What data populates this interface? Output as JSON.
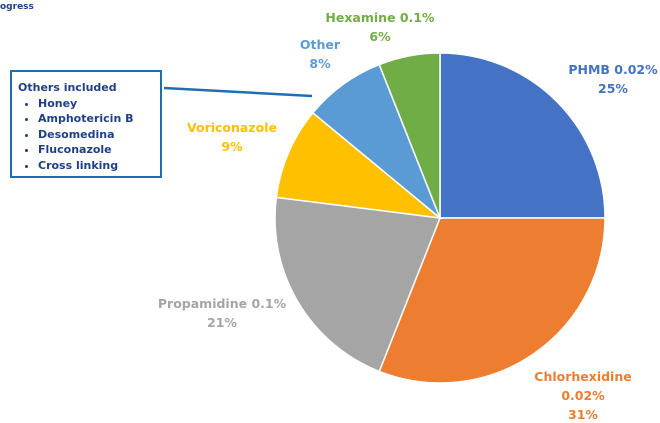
{
  "chart_data": {
    "type": "pie",
    "header": "ogress",
    "categories": [
      "PHMB 0.02%",
      "Chlorhexidine 0.02%",
      "Propamidine 0.1%",
      "Voriconazole",
      "Other",
      "Hexamine 0.1%"
    ],
    "values": [
      25,
      31,
      21,
      9,
      8,
      6
    ],
    "value_labels": [
      "25%",
      "31%",
      "21%",
      "9%",
      "8%",
      "6%"
    ],
    "colors": [
      "#4472c4",
      "#ed7d31",
      "#a5a5a5",
      "#ffc000",
      "#5b9bd5",
      "#70ad47"
    ],
    "annotation": {
      "title": "Others included",
      "items": [
        "Honey",
        "Amphotericin B",
        "Desomedina",
        "Fluconazole",
        "Cross linking"
      ]
    }
  }
}
